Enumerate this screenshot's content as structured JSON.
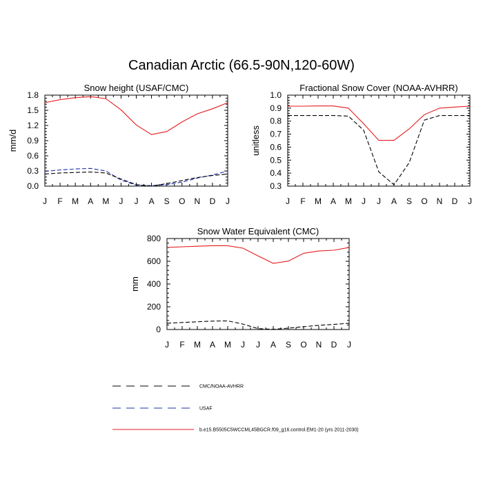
{
  "figure": {
    "title": "Canadian Arctic (66.5-90N,120-60W)"
  },
  "legend": [
    {
      "label": "CMC/NOAA-AVHRR",
      "color": "#000000",
      "dash": "dashed"
    },
    {
      "label": "USAF",
      "color": "#1f2fa8",
      "dash": "dashed"
    },
    {
      "label": "b.e15.B5505C5WCCML45BGCR.f09_g16.control.EM1-20 (yrs 2011-2030)",
      "color": "#e41a1c",
      "dash": "solid"
    }
  ],
  "chart_data": [
    {
      "type": "line",
      "title": "Snow height (USAF/CMC)",
      "xlabel": "",
      "ylabel": "mm/d",
      "categories": [
        "J",
        "F",
        "M",
        "A",
        "M",
        "J",
        "J",
        "A",
        "S",
        "O",
        "N",
        "D",
        "J"
      ],
      "ylim": [
        0,
        1.8
      ],
      "yticks": [
        "0.0",
        "0.3",
        "0.6",
        "0.9",
        "1.2",
        "1.5",
        "1.8"
      ],
      "series": [
        {
          "name": "b.e15.B5505C5WCCML45BGCR.f09_g16.control.EM1-20 (yrs 2011-2030)",
          "color": "#e41a1c",
          "dash": "solid",
          "values": [
            1.65,
            1.71,
            1.75,
            1.77,
            1.73,
            1.51,
            1.21,
            1.02,
            1.08,
            1.27,
            1.43,
            1.53,
            1.65
          ]
        },
        {
          "name": "USAF",
          "color": "#1f2fa8",
          "dash": "dashed",
          "values": [
            0.29,
            0.32,
            0.34,
            0.35,
            0.3,
            0.12,
            0.02,
            0.01,
            0.03,
            0.08,
            0.16,
            0.22,
            0.3
          ]
        },
        {
          "name": "CMC/NOAA-AVHRR",
          "color": "#000000",
          "dash": "dashed",
          "values": [
            0.24,
            0.26,
            0.27,
            0.28,
            0.26,
            0.14,
            0.03,
            0.0,
            0.05,
            0.11,
            0.17,
            0.21,
            0.24
          ]
        }
      ]
    },
    {
      "type": "line",
      "title": "Fractional Snow Cover (NOAA-AVHRR)",
      "xlabel": "",
      "ylabel": "unitless",
      "categories": [
        "J",
        "F",
        "M",
        "A",
        "M",
        "J",
        "J",
        "A",
        "S",
        "O",
        "N",
        "D",
        "J"
      ],
      "ylim": [
        0.3,
        1.0
      ],
      "yticks": [
        "0.3",
        "0.4",
        "0.5",
        "0.6",
        "0.7",
        "0.8",
        "0.9",
        "1.0"
      ],
      "series": [
        {
          "name": "b.e15.B5505C5WCCML45BGCR.f09_g16.control.EM1-20 (yrs 2011-2030)",
          "color": "#e41a1c",
          "dash": "solid",
          "values": [
            0.915,
            0.915,
            0.917,
            0.917,
            0.9,
            0.78,
            0.652,
            0.652,
            0.74,
            0.85,
            0.9,
            0.908,
            0.915
          ]
        },
        {
          "name": "CMC/NOAA-AVHRR",
          "color": "#000000",
          "dash": "dashed",
          "values": [
            0.843,
            0.843,
            0.843,
            0.843,
            0.838,
            0.73,
            0.41,
            0.31,
            0.48,
            0.808,
            0.843,
            0.843,
            0.843
          ]
        }
      ]
    },
    {
      "type": "line",
      "title": "Snow Water Equivalent (CMC)",
      "xlabel": "",
      "ylabel": "mm",
      "categories": [
        "J",
        "F",
        "M",
        "A",
        "M",
        "J",
        "J",
        "A",
        "S",
        "O",
        "N",
        "D",
        "J"
      ],
      "ylim": [
        0,
        800
      ],
      "yticks": [
        "0",
        "200",
        "400",
        "600",
        "800"
      ],
      "series": [
        {
          "name": "b.e15.B5505C5WCCML45BGCR.f09_g16.control.EM1-20 (yrs 2011-2030)",
          "color": "#e41a1c",
          "dash": "solid",
          "values": [
            722,
            727,
            732,
            737,
            737,
            715,
            647,
            582,
            602,
            670,
            690,
            697,
            722
          ]
        },
        {
          "name": "CMC/NOAA-AVHRR",
          "color": "#000000",
          "dash": "dashed",
          "values": [
            55,
            62,
            68,
            74,
            76,
            48,
            8,
            2,
            12,
            25,
            37,
            45,
            55
          ]
        }
      ]
    }
  ]
}
